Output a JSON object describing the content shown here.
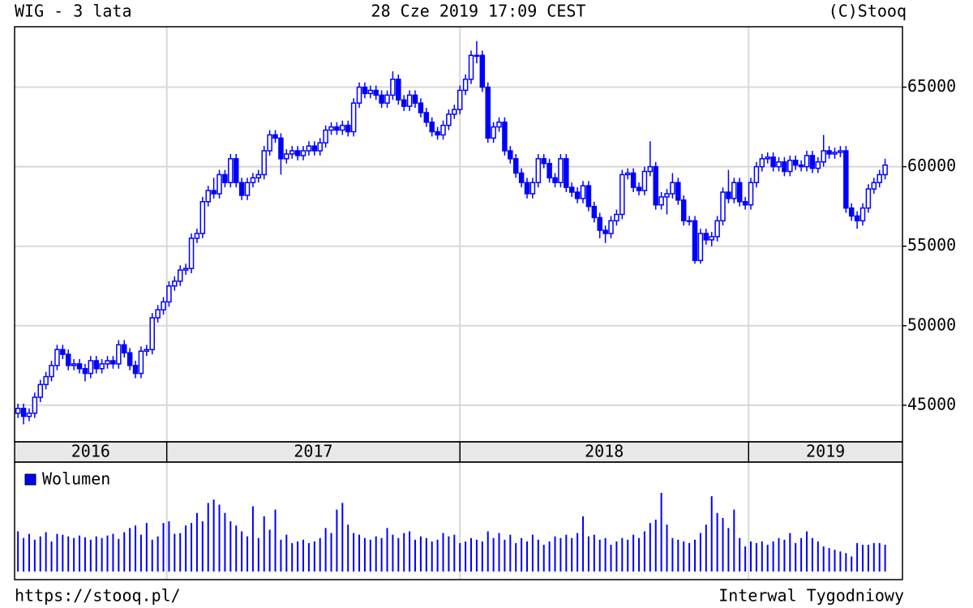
{
  "chart_data": {
    "type": "candlestick",
    "title": "WIG - 3 lata",
    "timestamp": "28 Cze 2019 17:09 CEST",
    "source": "(C)Stooq",
    "url": "https://stooq.pl/",
    "interval": "Interwal Tygodniowy",
    "color": "#0000ff",
    "up_fill": "#ffffff",
    "grid": true,
    "ylim": [
      42700,
      68800
    ],
    "yticks": [
      45000,
      50000,
      55000,
      60000,
      65000
    ],
    "xlim": [
      -0.6,
      158.1
    ],
    "xticks": [
      26.6,
      79,
      130.6
    ],
    "year_labels": [
      "2016",
      "2017",
      "2018",
      "2019"
    ],
    "ohlc": [
      [
        44500,
        45100,
        44200,
        44800
      ],
      [
        44800,
        45100,
        43800,
        44300
      ],
      [
        44300,
        44800,
        44000,
        44500
      ],
      [
        44500,
        45800,
        44200,
        45500
      ],
      [
        45500,
        46600,
        45200,
        46300
      ],
      [
        46300,
        47100,
        46000,
        46800
      ],
      [
        46800,
        47800,
        46500,
        47500
      ],
      [
        47500,
        48800,
        47200,
        48500
      ],
      [
        48500,
        48800,
        47900,
        48200
      ],
      [
        48200,
        48500,
        47200,
        47500
      ],
      [
        47500,
        47900,
        47200,
        47600
      ],
      [
        47600,
        47900,
        47000,
        47300
      ],
      [
        47300,
        47600,
        46500,
        47000
      ],
      [
        47000,
        48100,
        46700,
        47800
      ],
      [
        47800,
        48100,
        47000,
        47300
      ],
      [
        47300,
        47900,
        47000,
        47600
      ],
      [
        47600,
        48100,
        47300,
        47800
      ],
      [
        47800,
        48100,
        47300,
        47600
      ],
      [
        47600,
        49100,
        47300,
        48800
      ],
      [
        48800,
        49100,
        48000,
        48300
      ],
      [
        48300,
        48600,
        47200,
        47500
      ],
      [
        47500,
        47800,
        46700,
        47000
      ],
      [
        47000,
        48700,
        46700,
        48400
      ],
      [
        48400,
        48800,
        48100,
        48500
      ],
      [
        48500,
        50800,
        48200,
        50500
      ],
      [
        50500,
        51300,
        50200,
        51000
      ],
      [
        51000,
        51800,
        50700,
        51500
      ],
      [
        51500,
        52800,
        51200,
        52500
      ],
      [
        52500,
        53100,
        52200,
        52800
      ],
      [
        52800,
        53800,
        52500,
        53500
      ],
      [
        53500,
        53900,
        53200,
        53600
      ],
      [
        53600,
        55800,
        53300,
        55500
      ],
      [
        55500,
        56100,
        55200,
        55800
      ],
      [
        55800,
        58100,
        55500,
        57800
      ],
      [
        57800,
        58800,
        57500,
        58500
      ],
      [
        58500,
        59300,
        58000,
        58300
      ],
      [
        58300,
        59800,
        58000,
        59500
      ],
      [
        59500,
        59800,
        58700,
        59000
      ],
      [
        59000,
        60800,
        58700,
        60500
      ],
      [
        60500,
        60800,
        58700,
        59000
      ],
      [
        59000,
        59300,
        57900,
        58200
      ],
      [
        58200,
        59300,
        57900,
        59000
      ],
      [
        59000,
        59600,
        58700,
        59300
      ],
      [
        59300,
        59800,
        59000,
        59500
      ],
      [
        59500,
        61300,
        59200,
        61000
      ],
      [
        61000,
        62300,
        60700,
        62000
      ],
      [
        62000,
        62300,
        61500,
        61800
      ],
      [
        61800,
        62100,
        59500,
        60500
      ],
      [
        60500,
        61100,
        60200,
        60800
      ],
      [
        60800,
        61300,
        60500,
        61000
      ],
      [
        61000,
        61300,
        60400,
        60700
      ],
      [
        60700,
        61300,
        60400,
        61000
      ],
      [
        61000,
        61600,
        60700,
        61300
      ],
      [
        61300,
        61600,
        60700,
        61000
      ],
      [
        61000,
        61800,
        60700,
        61500
      ],
      [
        61500,
        62600,
        61200,
        62300
      ],
      [
        62300,
        62800,
        62000,
        62500
      ],
      [
        62500,
        62800,
        62000,
        62300
      ],
      [
        62300,
        62900,
        62000,
        62600
      ],
      [
        62600,
        62900,
        61900,
        62200
      ],
      [
        62200,
        64300,
        61900,
        64000
      ],
      [
        64000,
        65300,
        63700,
        65000
      ],
      [
        65000,
        65300,
        64300,
        64600
      ],
      [
        64600,
        65100,
        64300,
        64800
      ],
      [
        64800,
        65100,
        64200,
        64500
      ],
      [
        64500,
        64800,
        63700,
        64000
      ],
      [
        64000,
        64800,
        63700,
        64500
      ],
      [
        64500,
        66000,
        64200,
        65500
      ],
      [
        65500,
        65800,
        63900,
        64200
      ],
      [
        64200,
        64500,
        63500,
        63800
      ],
      [
        63800,
        64800,
        63500,
        64500
      ],
      [
        64500,
        64800,
        63700,
        64000
      ],
      [
        64000,
        64300,
        63100,
        63400
      ],
      [
        63400,
        63700,
        62500,
        62800
      ],
      [
        62800,
        63100,
        61900,
        62200
      ],
      [
        62200,
        62500,
        61700,
        62000
      ],
      [
        62000,
        62900,
        61700,
        62600
      ],
      [
        62600,
        63600,
        62300,
        63300
      ],
      [
        63300,
        63900,
        63000,
        63600
      ],
      [
        63600,
        65100,
        63300,
        64800
      ],
      [
        64800,
        65800,
        64500,
        65500
      ],
      [
        65500,
        67300,
        65200,
        67000
      ],
      [
        67000,
        67900,
        66500,
        67000
      ],
      [
        67000,
        67300,
        64700,
        65000
      ],
      [
        65000,
        65300,
        61500,
        61800
      ],
      [
        61800,
        62800,
        61500,
        62500
      ],
      [
        62500,
        63100,
        62200,
        62800
      ],
      [
        62800,
        63100,
        60700,
        61000
      ],
      [
        61000,
        61300,
        60200,
        60500
      ],
      [
        60500,
        60800,
        59300,
        59600
      ],
      [
        59600,
        59900,
        58700,
        59000
      ],
      [
        59000,
        59300,
        58000,
        58300
      ],
      [
        58300,
        59300,
        58000,
        59000
      ],
      [
        59000,
        60800,
        58700,
        60500
      ],
      [
        60500,
        60800,
        59900,
        60200
      ],
      [
        60200,
        60500,
        59000,
        59300
      ],
      [
        59300,
        59600,
        58700,
        59000
      ],
      [
        59000,
        60800,
        58700,
        60500
      ],
      [
        60500,
        60800,
        58400,
        58700
      ],
      [
        58700,
        59000,
        58100,
        58400
      ],
      [
        58400,
        58700,
        57700,
        58000
      ],
      [
        58000,
        59100,
        57700,
        58800
      ],
      [
        58800,
        59100,
        57200,
        57500
      ],
      [
        57500,
        57800,
        56500,
        56800
      ],
      [
        56800,
        57100,
        55500,
        56000
      ],
      [
        56000,
        56300,
        55200,
        55800
      ],
      [
        55800,
        56900,
        55500,
        56600
      ],
      [
        56600,
        57300,
        56300,
        57000
      ],
      [
        57000,
        59800,
        56700,
        59500
      ],
      [
        59500,
        59900,
        59200,
        59600
      ],
      [
        59600,
        59900,
        58400,
        58700
      ],
      [
        58700,
        59000,
        58200,
        58500
      ],
      [
        58500,
        60000,
        58200,
        59700
      ],
      [
        59700,
        61600,
        59400,
        60000
      ],
      [
        60000,
        60300,
        57300,
        57600
      ],
      [
        57600,
        58400,
        57300,
        58100
      ],
      [
        58100,
        58600,
        57000,
        58300
      ],
      [
        58300,
        59600,
        58000,
        59000
      ],
      [
        59000,
        59300,
        57600,
        57900
      ],
      [
        57900,
        58200,
        56300,
        56600
      ],
      [
        56600,
        56900,
        56300,
        56600
      ],
      [
        56600,
        56900,
        53900,
        54100
      ],
      [
        54100,
        56100,
        53900,
        55800
      ],
      [
        55800,
        56100,
        55100,
        55400
      ],
      [
        55400,
        55900,
        55000,
        55600
      ],
      [
        55600,
        56900,
        55300,
        56600
      ],
      [
        56600,
        58700,
        56300,
        58400
      ],
      [
        58400,
        59800,
        57700,
        58000
      ],
      [
        58000,
        59300,
        57700,
        59000
      ],
      [
        59000,
        59300,
        57500,
        57800
      ],
      [
        57800,
        58100,
        57300,
        57600
      ],
      [
        57600,
        59300,
        57300,
        59000
      ],
      [
        59000,
        60300,
        58700,
        60000
      ],
      [
        60000,
        60800,
        59700,
        60500
      ],
      [
        60500,
        60900,
        60200,
        60600
      ],
      [
        60600,
        60900,
        59700,
        60000
      ],
      [
        60000,
        60600,
        59700,
        60300
      ],
      [
        60300,
        60600,
        59400,
        59700
      ],
      [
        59700,
        60700,
        59400,
        60400
      ],
      [
        60400,
        60700,
        59800,
        60100
      ],
      [
        60100,
        60400,
        59700,
        60000
      ],
      [
        60000,
        61000,
        59700,
        60700
      ],
      [
        60700,
        61000,
        59600,
        59900
      ],
      [
        59900,
        60600,
        59600,
        60300
      ],
      [
        60300,
        62000,
        60000,
        61000
      ],
      [
        61000,
        61300,
        60500,
        60800
      ],
      [
        60800,
        61200,
        60500,
        60900
      ],
      [
        60900,
        61300,
        60600,
        61000
      ],
      [
        61000,
        61300,
        57100,
        57400
      ],
      [
        57400,
        57700,
        56600,
        56900
      ],
      [
        56900,
        57200,
        56100,
        56600
      ],
      [
        56600,
        57700,
        56300,
        57400
      ],
      [
        57400,
        58900,
        57100,
        58600
      ],
      [
        58600,
        59300,
        58300,
        59000
      ],
      [
        59000,
        59800,
        58700,
        59500
      ],
      [
        59500,
        60500,
        59200,
        60100
      ]
    ],
    "volume": {
      "name": "Wolumen",
      "color": "#0000ff",
      "values": [
        48,
        40,
        45,
        38,
        42,
        47,
        36,
        45,
        44,
        42,
        40,
        43,
        41,
        38,
        42,
        40,
        43,
        45,
        39,
        47,
        52,
        55,
        44,
        58,
        38,
        42,
        58,
        60,
        45,
        46,
        55,
        58,
        70,
        60,
        82,
        86,
        80,
        70,
        60,
        55,
        48,
        42,
        78,
        40,
        66,
        50,
        74,
        38,
        44,
        34,
        36,
        38,
        34,
        36,
        40,
        52,
        46,
        74,
        82,
        56,
        46,
        44,
        40,
        38,
        42,
        40,
        52,
        44,
        40,
        46,
        48,
        38,
        42,
        40,
        36,
        38,
        46,
        42,
        44,
        34,
        36,
        40,
        38,
        36,
        48,
        40,
        46,
        38,
        44,
        34,
        40,
        36,
        44,
        38,
        32,
        36,
        42,
        40,
        44,
        40,
        46,
        66,
        42,
        44,
        38,
        40,
        32,
        36,
        40,
        38,
        44,
        40,
        48,
        58,
        62,
        94,
        56,
        40,
        38,
        36,
        34,
        38,
        46,
        56,
        90,
        70,
        64,
        52,
        74,
        40,
        30,
        36,
        34,
        36,
        32,
        36,
        40,
        38,
        46,
        34,
        40,
        48,
        40,
        36,
        30,
        28,
        26,
        24,
        22,
        18,
        34,
        32,
        32,
        34,
        34,
        32
      ]
    }
  }
}
